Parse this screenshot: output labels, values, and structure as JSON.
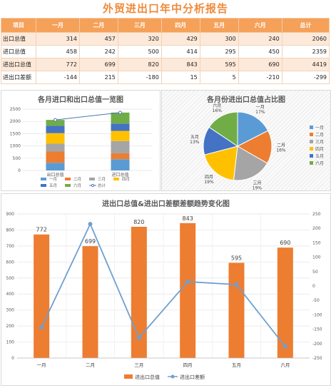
{
  "report_title": "外贸进出口年中分析报告",
  "table": {
    "headers": [
      "项目",
      "一月",
      "二月",
      "三月",
      "四月",
      "五月",
      "六月",
      "总计"
    ],
    "rows": [
      {
        "label": "出口总值",
        "values": [
          "314",
          "457",
          "320",
          "429",
          "300",
          "240",
          "2060"
        ]
      },
      {
        "label": "进口总值",
        "values": [
          "458",
          "242",
          "500",
          "414",
          "295",
          "450",
          "2359"
        ]
      },
      {
        "label": "进出口总值",
        "values": [
          "772",
          "699",
          "820",
          "843",
          "595",
          "690",
          "4419"
        ]
      },
      {
        "label": "进出口差额",
        "values": [
          "-144",
          "215",
          "-180",
          "15",
          "5",
          "-210",
          "-299"
        ]
      }
    ]
  },
  "colors": {
    "accent": "#f5a15a",
    "months": [
      "#5b9bd5",
      "#ed7d31",
      "#a5a5a5",
      "#ffc000",
      "#4472c4",
      "#70ad47"
    ],
    "total_line": "#44546a",
    "bar": "#ed7d31",
    "diff_line": "#6f9fd0"
  },
  "chart_data": [
    {
      "type": "bar",
      "stacked": true,
      "title": "各月进口和出口总值一览图",
      "categories": [
        "出口总值",
        "进口总值"
      ],
      "series": [
        {
          "name": "一月",
          "values": [
            314,
            458
          ]
        },
        {
          "name": "二月",
          "values": [
            457,
            242
          ]
        },
        {
          "name": "三月",
          "values": [
            320,
            500
          ]
        },
        {
          "name": "四月",
          "values": [
            429,
            414
          ]
        },
        {
          "name": "五月",
          "values": [
            300,
            295
          ]
        },
        {
          "name": "六月",
          "values": [
            240,
            450
          ]
        },
        {
          "name": "总计",
          "type": "line",
          "values": [
            2060,
            2359
          ]
        }
      ],
      "ylim": [
        0,
        2500
      ],
      "yticks": [
        0,
        500,
        1000,
        1500,
        2000,
        2500
      ],
      "legend": "bottom"
    },
    {
      "type": "pie",
      "title": "各月份进出口总值占比图",
      "labels": [
        "一月",
        "二月",
        "三月",
        "四月",
        "五月",
        "六月"
      ],
      "values": [
        772,
        699,
        820,
        843,
        595,
        690
      ],
      "percent_labels": [
        "17%",
        "16%",
        "19%",
        "19%",
        "13%",
        "16%"
      ],
      "legend": "right"
    },
    {
      "type": "bar",
      "title": "进出口总值&进出口差额差额趋势变化图",
      "categories": [
        "一月",
        "二月",
        "三月",
        "四月",
        "五月",
        "六月"
      ],
      "series": [
        {
          "name": "进出口总值",
          "type": "bar",
          "axis": "left",
          "values": [
            772,
            699,
            820,
            843,
            595,
            690
          ]
        },
        {
          "name": "进出口差额",
          "type": "line",
          "axis": "right",
          "values": [
            -144,
            215,
            -180,
            15,
            5,
            -210
          ]
        }
      ],
      "ylim": [
        0,
        900
      ],
      "yticks": [
        0,
        100,
        200,
        300,
        400,
        500,
        600,
        700,
        800,
        900
      ],
      "y2lim": [
        -250,
        250
      ],
      "y2ticks": [
        -250,
        -200,
        -150,
        -100,
        -50,
        0,
        50,
        100,
        150,
        200,
        250
      ],
      "legend": "bottom"
    }
  ]
}
